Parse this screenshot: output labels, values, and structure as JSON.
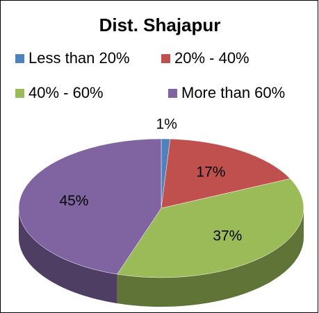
{
  "chart_data": {
    "type": "pie3d",
    "title": "Dist. Shajapur",
    "categories": [
      "Less than 20%",
      "20% - 40%",
      "40% - 60%",
      "More than 60%"
    ],
    "values": [
      1,
      17,
      37,
      45
    ],
    "value_labels": [
      "1%",
      "17%",
      "37%",
      "45%"
    ],
    "colors": [
      "#4f81bd",
      "#c0504d",
      "#9bbb59",
      "#8064a2"
    ],
    "legend": "top"
  }
}
